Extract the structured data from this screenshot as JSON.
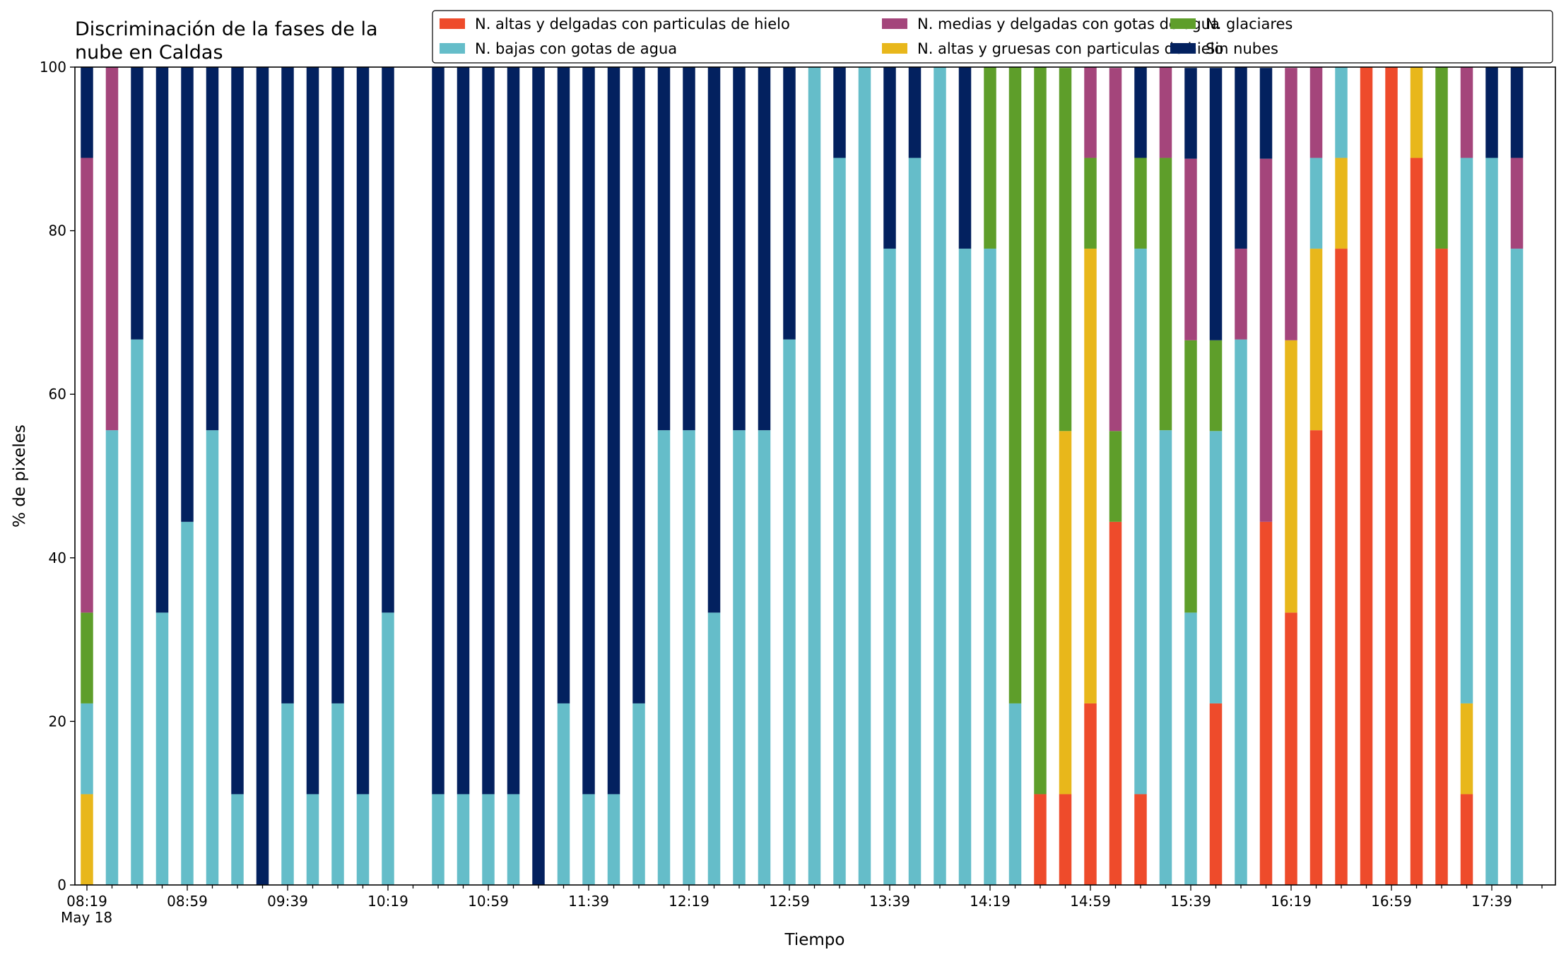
{
  "chart_data": {
    "type": "bar",
    "stacked": true,
    "title_lines": [
      "Discriminación de la fases de la",
      "nube en Caldas"
    ],
    "xlabel": "Tiempo",
    "ylabel": "% de pixeles",
    "ylim": [
      0,
      100
    ],
    "yticks": [
      0,
      20,
      40,
      60,
      80,
      100
    ],
    "x_interval_minutes": 10,
    "xtick_labels": [
      "08:19",
      "08:59",
      "09:39",
      "10:19",
      "10:59",
      "11:39",
      "12:19",
      "12:59",
      "13:39",
      "14:19",
      "14:59",
      "15:39",
      "16:19",
      "16:59",
      "17:39"
    ],
    "date_label": "May 18",
    "grid": false,
    "legend_position": "top",
    "series": [
      {
        "name": "N. altas y delgadas con particulas de hielo",
        "color": "#ee4b2b"
      },
      {
        "name": "N. altas y gruesas con particulas de hielo",
        "color": "#e8b71b"
      },
      {
        "name": "N. bajas con gotas de agua",
        "color": "#65bdc9"
      },
      {
        "name": "N. glaciares",
        "color": "#5e9e2a"
      },
      {
        "name": "N. medias y delgadas con gotas de agua",
        "color": "#a4457b"
      },
      {
        "name": "Sin nubes",
        "color": "#03215f"
      }
    ],
    "legend_order": [
      0,
      2,
      4,
      1,
      3,
      5
    ],
    "bars": [
      [
        0,
        11.1,
        11.1,
        11.1,
        55.6,
        11.1
      ],
      [
        0,
        0,
        55.6,
        0,
        44.4,
        0
      ],
      [
        0,
        0,
        66.7,
        0,
        0,
        33.3
      ],
      [
        0,
        0,
        33.3,
        0,
        0,
        66.7
      ],
      [
        0,
        0,
        44.4,
        0,
        0,
        55.6
      ],
      [
        0,
        0,
        55.6,
        0,
        0,
        44.4
      ],
      [
        0,
        0,
        11.1,
        0,
        0,
        88.9
      ],
      [
        0,
        0,
        0,
        0,
        0,
        100
      ],
      [
        0,
        0,
        22.2,
        0,
        0,
        77.8
      ],
      [
        0,
        0,
        11.1,
        0,
        0,
        88.9
      ],
      [
        0,
        0,
        22.2,
        0,
        0,
        77.8
      ],
      [
        0,
        0,
        11.1,
        0,
        0,
        88.9
      ],
      [
        0,
        0,
        33.3,
        0,
        0,
        66.7
      ],
      null,
      [
        0,
        0,
        11.1,
        0,
        0,
        88.9
      ],
      [
        0,
        0,
        11.1,
        0,
        0,
        88.9
      ],
      [
        0,
        0,
        11.1,
        0,
        0,
        88.9
      ],
      [
        0,
        0,
        11.1,
        0,
        0,
        88.9
      ],
      [
        0,
        0,
        0,
        0,
        0,
        100
      ],
      [
        0,
        0,
        22.2,
        0,
        0,
        77.8
      ],
      [
        0,
        0,
        11.1,
        0,
        0,
        88.9
      ],
      [
        0,
        0,
        11.1,
        0,
        0,
        88.9
      ],
      [
        0,
        0,
        22.2,
        0,
        0,
        77.8
      ],
      [
        0,
        0,
        55.6,
        0,
        0,
        44.4
      ],
      [
        0,
        0,
        55.6,
        0,
        0,
        44.4
      ],
      [
        0,
        0,
        33.3,
        0,
        0,
        66.7
      ],
      [
        0,
        0,
        55.6,
        0,
        0,
        44.4
      ],
      [
        0,
        0,
        55.6,
        0,
        0,
        44.4
      ],
      [
        0,
        0,
        66.7,
        0,
        0,
        33.3
      ],
      [
        0,
        0,
        100,
        0,
        0,
        0
      ],
      [
        0,
        0,
        88.9,
        0,
        0,
        11.1
      ],
      [
        0,
        0,
        100,
        0,
        0,
        0
      ],
      [
        0,
        0,
        77.8,
        0,
        0,
        22.2
      ],
      [
        0,
        0,
        88.9,
        0,
        0,
        11.1
      ],
      [
        0,
        0,
        100,
        0,
        0,
        0
      ],
      [
        0,
        0,
        77.8,
        0,
        0,
        22.2
      ],
      [
        0,
        0,
        77.8,
        22.2,
        0,
        0
      ],
      [
        0,
        0,
        22.2,
        77.8,
        0,
        0
      ],
      [
        11.1,
        0,
        0,
        88.9,
        0,
        0
      ],
      [
        11.1,
        44.4,
        0,
        44.4,
        0,
        0
      ],
      [
        22.2,
        55.6,
        0,
        11.1,
        11.1,
        0
      ],
      [
        44.4,
        0,
        0,
        11.1,
        44.4,
        0
      ],
      [
        11.1,
        0,
        66.7,
        11.1,
        0,
        11.1
      ],
      [
        0,
        0,
        55.6,
        33.3,
        11.1,
        0
      ],
      [
        0,
        0,
        33.3,
        33.3,
        22.2,
        11.1
      ],
      [
        22.2,
        0,
        33.3,
        11.1,
        0,
        33.3
      ],
      [
        0,
        0,
        66.7,
        0,
        11.1,
        22.2
      ],
      [
        44.4,
        0,
        0,
        0,
        44.4,
        11.1
      ],
      [
        33.3,
        33.3,
        0,
        0,
        33.3,
        0
      ],
      [
        55.6,
        22.2,
        11.1,
        0,
        11.1,
        0
      ],
      [
        77.8,
        11.1,
        11.1,
        0,
        0,
        0
      ],
      [
        100,
        0,
        0,
        0,
        0,
        0
      ],
      [
        100,
        0,
        0,
        0,
        0,
        0
      ],
      [
        88.9,
        11.1,
        0,
        0,
        0,
        0
      ],
      [
        77.8,
        0,
        0,
        22.2,
        0,
        0
      ],
      [
        11.1,
        11.1,
        66.7,
        0,
        11.1,
        0
      ],
      [
        0,
        0,
        88.9,
        0,
        0,
        11.1
      ],
      [
        0,
        0,
        77.8,
        0,
        11.1,
        11.1
      ]
    ]
  }
}
